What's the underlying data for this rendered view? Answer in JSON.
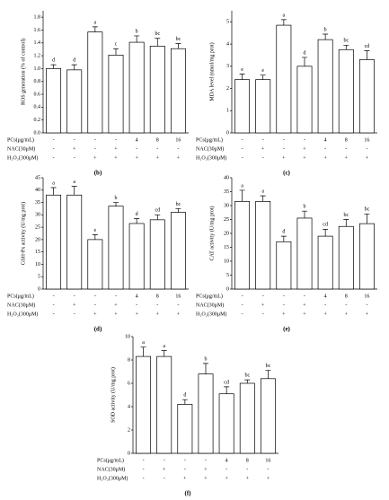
{
  "chart_data": [
    {
      "type": "bar",
      "panel_label": "(b)",
      "ylabel": "ROS generation (% of control)",
      "color": "#ffffff",
      "categories": [
        null,
        null,
        null,
        null,
        null,
        null,
        null
      ],
      "values": [
        1.0,
        0.98,
        1.57,
        1.21,
        1.41,
        1.35,
        1.31
      ],
      "errors": [
        0.06,
        0.08,
        0.08,
        0.1,
        0.1,
        0.12,
        0.08
      ],
      "significance": [
        "d",
        "d",
        "a",
        "c",
        "b",
        "bc",
        "bc"
      ],
      "ylim": [
        0,
        1.9
      ],
      "yticks": [
        {
          "value": 0,
          "label": "0.0"
        },
        {
          "value": 0.2,
          "label": "0.2"
        },
        {
          "value": 0.4,
          "label": "0.4"
        },
        {
          "value": 0.6,
          "label": "0.6"
        },
        {
          "value": 0.8,
          "label": "0.8"
        },
        {
          "value": 1.0,
          "label": "1.0"
        },
        {
          "value": 1.2,
          "label": "1.2"
        },
        {
          "value": 1.4,
          "label": "1.4"
        },
        {
          "value": 1.6,
          "label": "1.6"
        },
        {
          "value": 1.8,
          "label": "1.8"
        }
      ],
      "treatments": [
        {
          "label": "PCs(μg/mL)",
          "values": [
            "-",
            "-",
            "-",
            "-",
            "4",
            "8",
            "16"
          ]
        },
        {
          "label": "NAC(30μM)",
          "values": [
            "-",
            "+",
            "-",
            "+",
            "-",
            "-",
            "-"
          ]
        },
        {
          "label": "H₂O₂(300μM)",
          "values": [
            "-",
            "-",
            "+",
            "+",
            "+",
            "+",
            "+"
          ]
        }
      ]
    },
    {
      "type": "bar",
      "panel_label": "(c)",
      "ylabel": "MDA level (nmol/mg prot)",
      "color": "#ffffff",
      "categories": [
        null,
        null,
        null,
        null,
        null,
        null,
        null
      ],
      "values": [
        2.4,
        2.4,
        4.85,
        3.0,
        4.2,
        3.75,
        3.3
      ],
      "errors": [
        0.25,
        0.2,
        0.25,
        0.4,
        0.25,
        0.2,
        0.4
      ],
      "significance": [
        "e",
        "e",
        "a",
        "d",
        "b",
        "bc",
        "cd"
      ],
      "ylim": [
        0,
        5.5
      ],
      "yticks": [
        0,
        1,
        2,
        3,
        4,
        5
      ],
      "treatments": [
        {
          "label": "PCs(μg/mL)",
          "values": [
            "-",
            "-",
            "-",
            "-",
            "4",
            "8",
            "16"
          ]
        },
        {
          "label": "NAC(30μM)",
          "values": [
            "-",
            "+",
            "-",
            "+",
            "-",
            "-",
            "-"
          ]
        },
        {
          "label": "H₂O₂(300μM)",
          "values": [
            "-",
            "-",
            "+",
            "+",
            "+",
            "+",
            "+"
          ]
        }
      ]
    },
    {
      "type": "bar",
      "panel_label": "(d)",
      "ylabel": "GSH-Px activity (U/mg prot)",
      "color": "#ffffff",
      "categories": [
        null,
        null,
        null,
        null,
        null,
        null,
        null
      ],
      "values": [
        38,
        38,
        20,
        33.5,
        26.5,
        28,
        31
      ],
      "errors": [
        3,
        3.5,
        2,
        1.5,
        2,
        2,
        1.5
      ],
      "significance": [
        "a",
        "a",
        "e",
        "b",
        "d",
        "cd",
        "bc"
      ],
      "ylim": [
        0,
        45
      ],
      "yticks": [
        0,
        5,
        10,
        15,
        20,
        25,
        30,
        35,
        40,
        45
      ],
      "treatments": [
        {
          "label": "PCs(μg/mL)",
          "values": [
            "-",
            "-",
            "-",
            "-",
            "4",
            "8",
            "16"
          ]
        },
        {
          "label": "NAC(30μM)",
          "values": [
            "-",
            "+",
            "-",
            "+",
            "-",
            "-",
            "-"
          ]
        },
        {
          "label": "H₂O₂(300μM)",
          "values": [
            "-",
            "-",
            "+",
            "+",
            "+",
            "+",
            "+"
          ]
        }
      ]
    },
    {
      "type": "bar",
      "panel_label": "(e)",
      "ylabel": "CAT activity (U/mg prot)",
      "color": "#ffffff",
      "categories": [
        null,
        null,
        null,
        null,
        null,
        null,
        null
      ],
      "values": [
        31.5,
        31.5,
        17,
        25.5,
        19,
        22.5,
        23.5
      ],
      "errors": [
        4,
        2,
        2,
        2.5,
        2.5,
        2.5,
        3.5
      ],
      "significance": [
        "a",
        "a",
        "d",
        "b",
        "cd",
        "bc",
        "bc"
      ],
      "ylim": [
        0,
        40
      ],
      "yticks": [
        0,
        5,
        10,
        15,
        20,
        25,
        30,
        35,
        40
      ],
      "treatments": [
        {
          "label": "PCs(μg/mL)",
          "values": [
            "-",
            "-",
            "-",
            "-",
            "4",
            "8",
            "16"
          ]
        },
        {
          "label": "NAC(30μM)",
          "values": [
            "-",
            "+",
            "-",
            "+",
            "-",
            "-",
            "-"
          ]
        },
        {
          "label": "H₂O₂(300μM)",
          "values": [
            "-",
            "-",
            "+",
            "+",
            "+",
            "+",
            "+"
          ]
        }
      ]
    },
    {
      "type": "bar",
      "panel_label": "(f)",
      "ylabel": "SOD activity (U/mg prot)",
      "color": "#ffffff",
      "categories": [
        null,
        null,
        null,
        null,
        null,
        null,
        null
      ],
      "values": [
        8.3,
        8.3,
        4.2,
        6.8,
        5.1,
        6.0,
        6.4
      ],
      "errors": [
        0.8,
        0.5,
        0.4,
        0.9,
        0.6,
        0.3,
        0.7
      ],
      "significance": [
        "a",
        "a",
        "d",
        "b",
        "cd",
        "bc",
        "bc"
      ],
      "ylim": [
        0,
        10
      ],
      "yticks": [
        0,
        2,
        4,
        6,
        8,
        10
      ],
      "treatments": [
        {
          "label": "PCs(μg/mL)",
          "values": [
            "-",
            "-",
            "-",
            "-",
            "4",
            "8",
            "16"
          ]
        },
        {
          "label": "NAC(30μM)",
          "values": [
            "-",
            "+",
            "-",
            "+",
            "-",
            "-",
            "-"
          ]
        },
        {
          "label": "H₂O₂(300μM)",
          "values": [
            "-",
            "-",
            "+",
            "+",
            "+",
            "+",
            "+"
          ]
        }
      ]
    }
  ]
}
